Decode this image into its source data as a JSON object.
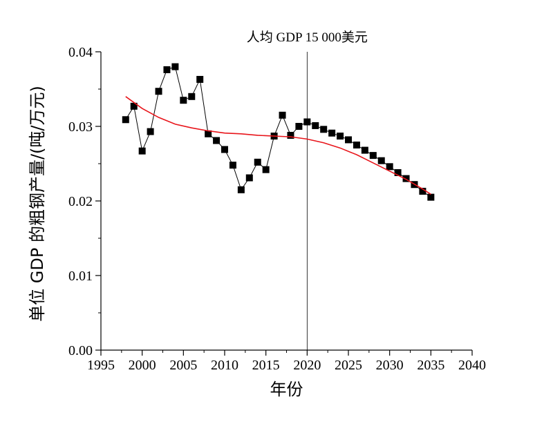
{
  "chart_data": {
    "type": "scatter",
    "xlabel": "年份",
    "ylabel": "单位 GDP 的粗钢产量/(吨/万元)",
    "xlim": [
      1995,
      2040
    ],
    "ylim": [
      0.0,
      0.04
    ],
    "x_ticks": [
      1995,
      2000,
      2005,
      2010,
      2015,
      2020,
      2025,
      2030,
      2035,
      2040
    ],
    "y_ticks": [
      0.0,
      0.01,
      0.02,
      0.03,
      0.04
    ],
    "x_tick_labels": [
      "1995",
      "2000",
      "2005",
      "2010",
      "2015",
      "2020",
      "2025",
      "2030",
      "2035",
      "2040"
    ],
    "y_tick_labels": [
      "0.00",
      "0.01",
      "0.02",
      "0.03",
      "0.04"
    ],
    "grid": false,
    "series": [
      {
        "color": "#000000",
        "marker": "square",
        "connected": true,
        "x": [
          1998,
          1999,
          2000,
          2001,
          2002,
          2003,
          2004,
          2005,
          2006,
          2007,
          2008,
          2009,
          2010,
          2011,
          2012,
          2013,
          2014,
          2015,
          2016,
          2017,
          2018,
          2019,
          2020,
          2021,
          2022,
          2023,
          2024,
          2025,
          2026,
          2027,
          2028,
          2029,
          2030,
          2031,
          2032,
          2033,
          2034,
          2035
        ],
        "values": [
          0.0309,
          0.0327,
          0.0267,
          0.0293,
          0.0347,
          0.0376,
          0.038,
          0.0335,
          0.034,
          0.0363,
          0.029,
          0.0281,
          0.0269,
          0.0248,
          0.0215,
          0.0231,
          0.0252,
          0.0242,
          0.0287,
          0.0315,
          0.0288,
          0.03,
          0.0306,
          0.0301,
          0.0296,
          0.0291,
          0.0287,
          0.0282,
          0.0275,
          0.0268,
          0.0261,
          0.0254,
          0.0246,
          0.0238,
          0.023,
          0.0222,
          0.0213,
          0.0205
        ]
      },
      {
        "color": "#e8141a",
        "type": "line",
        "x": [
          1998,
          2000,
          2002,
          2004,
          2006,
          2008,
          2010,
          2012,
          2014,
          2016,
          2018,
          2020,
          2022,
          2024,
          2026,
          2028,
          2030,
          2032,
          2034,
          2035
        ],
        "values": [
          0.034,
          0.0324,
          0.0312,
          0.0303,
          0.0298,
          0.0294,
          0.0291,
          0.029,
          0.0288,
          0.0287,
          0.0286,
          0.0283,
          0.0278,
          0.0271,
          0.0262,
          0.0251,
          0.024,
          0.0229,
          0.0216,
          0.0209
        ]
      }
    ],
    "annotations": [
      {
        "text": "人均 GDP 15 000美元",
        "x": 2020
      }
    ]
  }
}
